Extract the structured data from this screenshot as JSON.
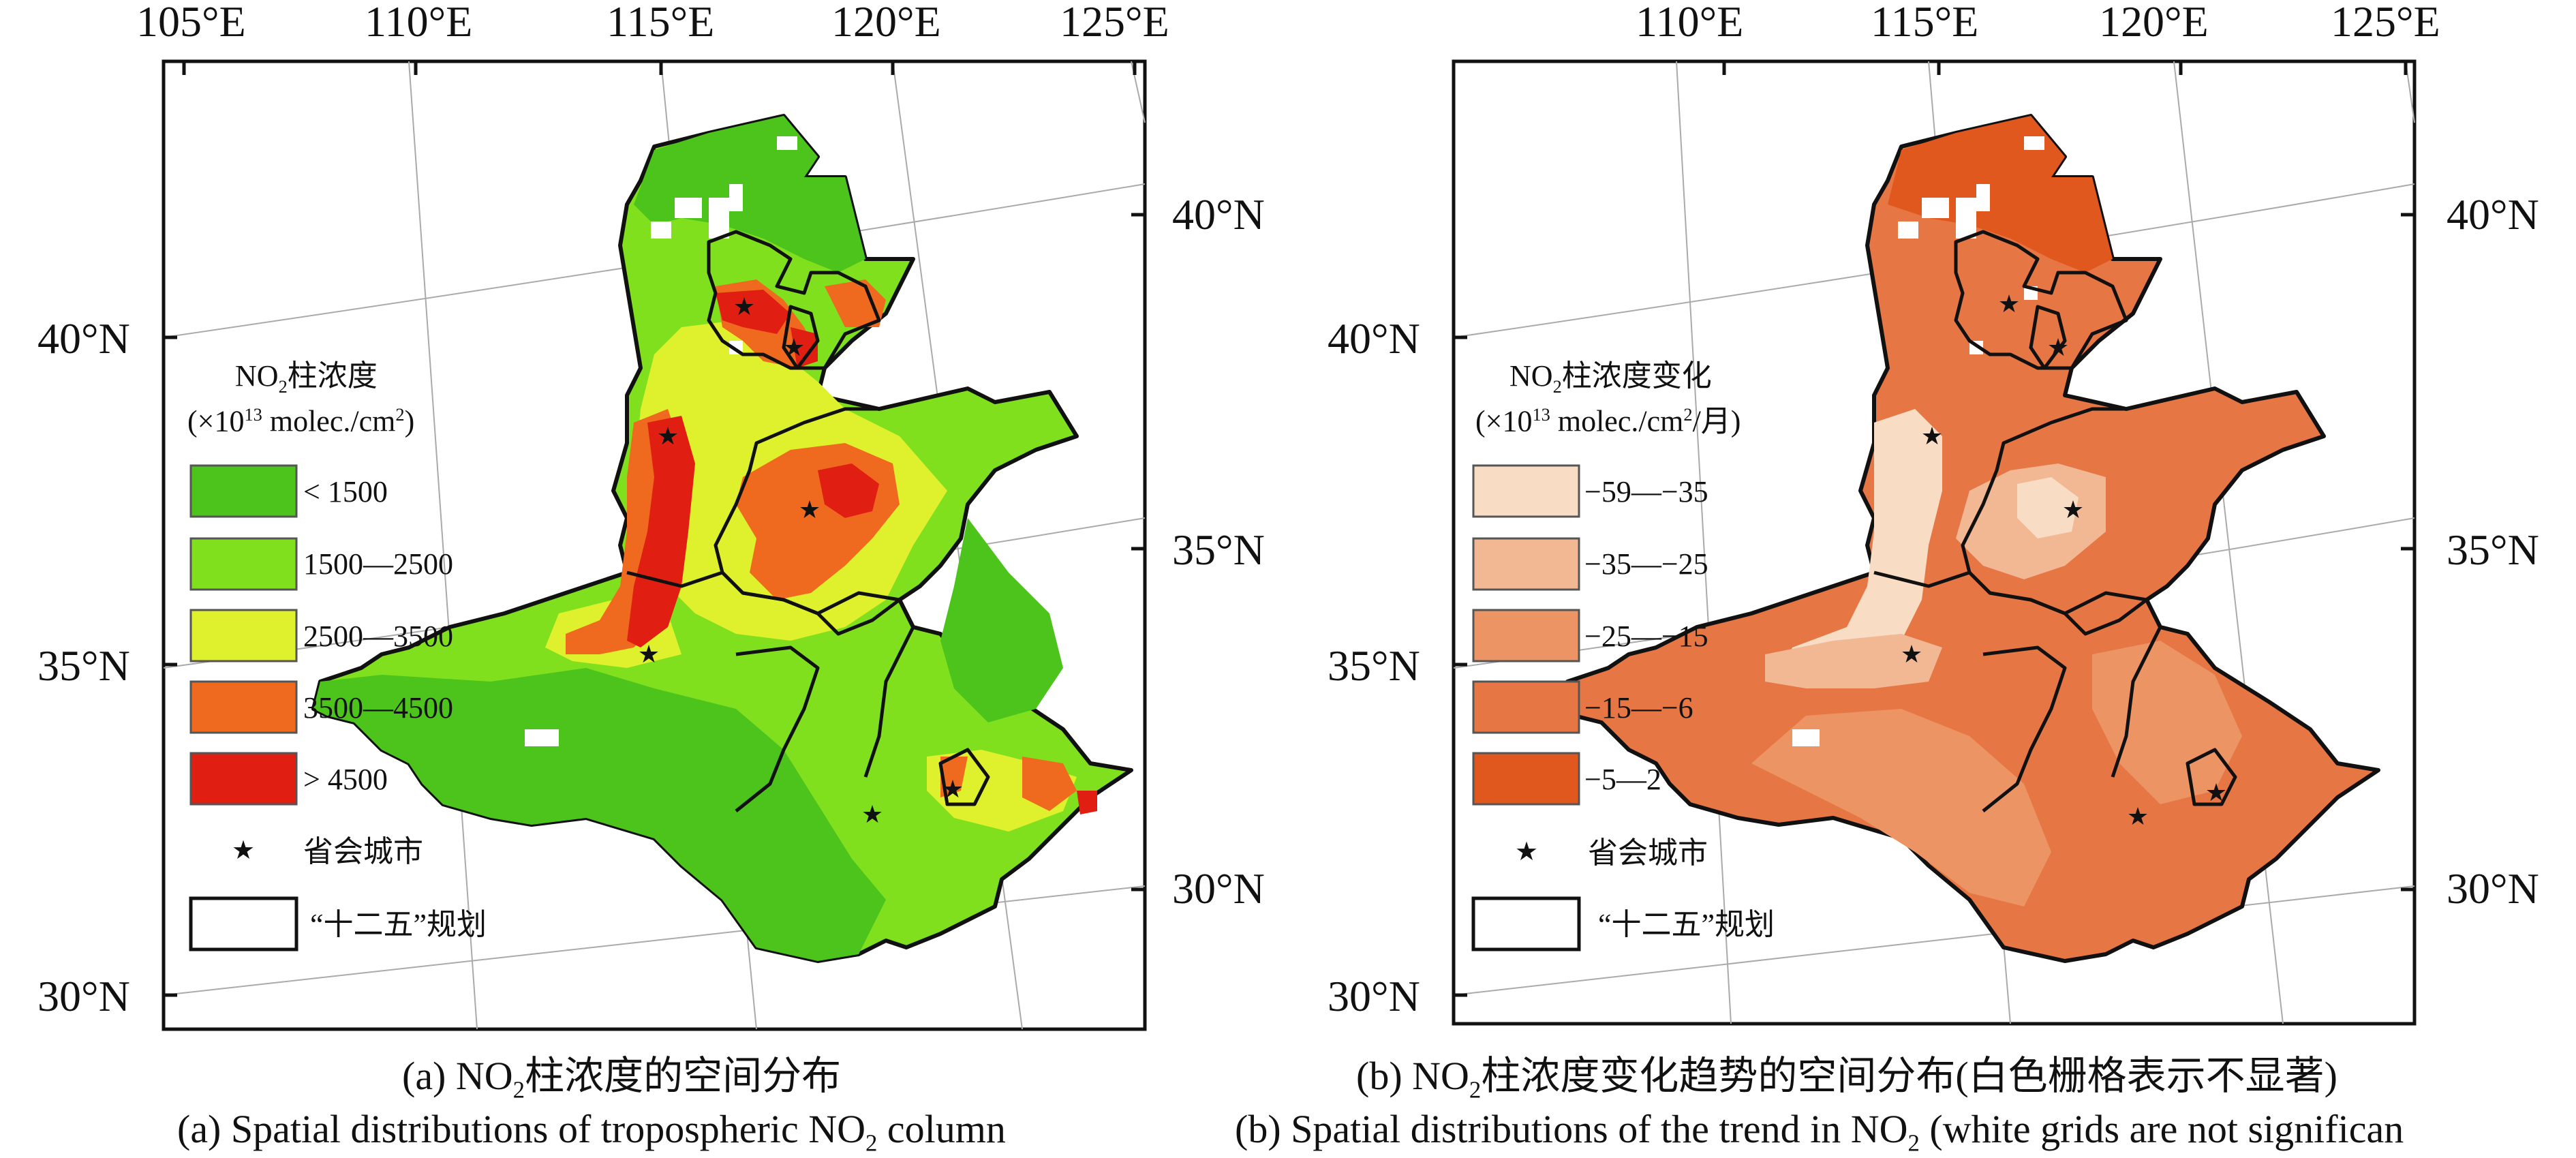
{
  "panel_a": {
    "top_lon_labels": [
      "105°E",
      "110°E",
      "115°E",
      "120°E",
      "125°E"
    ],
    "left_lat_labels": [
      "40°N",
      "35°N",
      "30°N"
    ],
    "right_lat_labels": [
      "40°N",
      "35°N",
      "30°N"
    ],
    "legend": {
      "title_prefix": "NO",
      "title_sub": "2",
      "title_suffix": "柱浓度",
      "unit_prefix": "(×10",
      "unit_sup": "13",
      "unit_mid": " molec./cm",
      "unit_sup2": "2",
      "unit_suffix": ")",
      "items": [
        {
          "label": "< 1500",
          "color": "#4cc41c"
        },
        {
          "label": "1500—2500",
          "color": "#80e01e"
        },
        {
          "label": "2500—3500",
          "color": "#dff02c"
        },
        {
          "label": "3500—4500",
          "color": "#ef6a1e"
        },
        {
          "label": "> 4500",
          "color": "#e01e12"
        }
      ],
      "city_label": "省会城市",
      "plan_label": "“十二五”规划"
    },
    "caption_zh_prefix": "(a) NO",
    "caption_zh_sub": "2",
    "caption_zh_suffix": "柱浓度的空间分布",
    "caption_en_prefix": "(a) Spatial distributions of tropospheric NO",
    "caption_en_sub": "2",
    "caption_en_suffix": " column"
  },
  "panel_b": {
    "top_lon_labels": [
      "110°E",
      "115°E",
      "120°E",
      "125°E"
    ],
    "left_lat_labels": [
      "40°N",
      "35°N",
      "30°N"
    ],
    "right_lat_labels": [
      "40°N",
      "35°N",
      "30°N"
    ],
    "legend": {
      "title_prefix": "NO",
      "title_sub": "2",
      "title_suffix": "柱浓度变化",
      "unit_prefix": "(×10",
      "unit_sup": "13",
      "unit_mid": " molec./cm",
      "unit_sup2": "2",
      "unit_suffix": "/月)",
      "items": [
        {
          "label": "−59—−35",
          "color": "#f8dcc4"
        },
        {
          "label": "−35—−25",
          "color": "#f2b894"
        },
        {
          "label": "−25—−15",
          "color": "#ec9464"
        },
        {
          "label": "−15—−6",
          "color": "#e67644"
        },
        {
          "label": "−5—2",
          "color": "#e0581e"
        }
      ],
      "city_label": "省会城市",
      "plan_label": "“十二五”规划"
    },
    "caption_zh_prefix": "(b) NO",
    "caption_zh_sub": "2",
    "caption_zh_suffix": "柱浓度变化趋势的空间分布(白色栅格表示不显著)",
    "caption_en_prefix": "(b) Spatial distributions of the trend in NO",
    "caption_en_sub": "2",
    "caption_en_suffix": " (white grids are not significan"
  }
}
